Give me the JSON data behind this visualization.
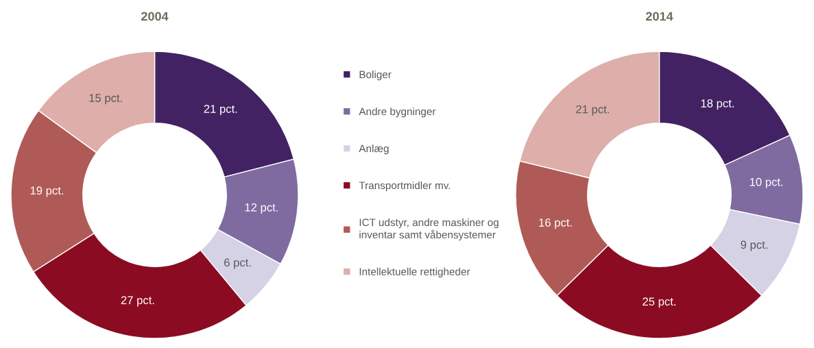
{
  "chart_data": {
    "type": "donut",
    "legend": "right",
    "categories": [
      "Boliger",
      "Andre bygninger",
      "Anlæg",
      "Transportmidler mv.",
      "ICT udstyr, andre maskiner og\ninventar samt våbensystemer",
      "Intellektuelle rettigheder"
    ],
    "colors": [
      "#432263",
      "#7f6ba0",
      "#d6d2e6",
      "#8b0c22",
      "#b05a58",
      "#ddaeaa"
    ],
    "series": [
      {
        "name": "2004",
        "values": [
          21,
          12,
          6,
          27,
          19,
          15
        ],
        "value_labels": [
          "21 pct.",
          "12 pct.",
          "6 pct.",
          "27 pct.",
          "19 pct.",
          "15 pct."
        ]
      },
      {
        "name": "2014",
        "values": [
          18,
          10,
          9,
          25,
          16,
          21
        ],
        "value_labels": [
          "18 pct.",
          "10 pct.",
          "9 pct.",
          "25 pct.",
          "16 pct.",
          "21 pct."
        ]
      }
    ]
  }
}
